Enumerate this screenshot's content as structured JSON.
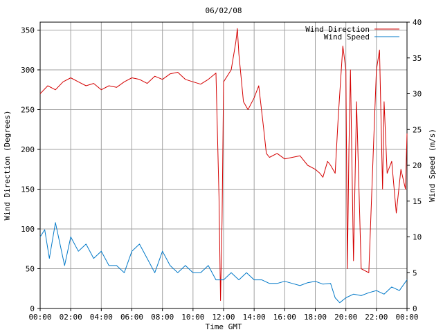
{
  "chart_data": {
    "type": "line",
    "title": "06/02/08",
    "xlabel": "Time GMT",
    "ylabel_left": "Wind Direction (Degrees)",
    "ylabel_right": "Wind Speed (m/s)",
    "x_ticks": [
      "00:00",
      "02:00",
      "04:00",
      "06:00",
      "08:00",
      "10:00",
      "12:00",
      "14:00",
      "16:00",
      "18:00",
      "20:00",
      "22:00",
      "00:00"
    ],
    "xlim_hours": [
      0,
      24
    ],
    "ylim_left": [
      0,
      360
    ],
    "yticks_left": [
      0,
      50,
      100,
      150,
      200,
      250,
      300,
      350
    ],
    "ylim_right": [
      0,
      40
    ],
    "yticks_right": [
      0,
      5,
      10,
      15,
      20,
      25,
      30,
      35,
      40
    ],
    "grid": true,
    "legend_position": "top-right",
    "series": [
      {
        "name": "Wind Direction",
        "axis": "left",
        "color": "#d40000",
        "x": [
          0,
          0.5,
          1,
          1.5,
          2,
          2.5,
          3,
          3.5,
          4,
          4.5,
          5,
          5.5,
          6,
          6.5,
          7,
          7.5,
          8,
          8.5,
          9,
          9.5,
          10,
          10.5,
          11,
          11.5,
          11.7,
          11.8,
          11.9,
          12,
          12.5,
          12.8,
          12.9,
          13,
          13.3,
          13.6,
          14,
          14.3,
          14.6,
          14.8,
          15,
          15.5,
          16,
          16.5,
          17,
          17.5,
          18,
          18.3,
          18.5,
          18.8,
          19,
          19.3,
          19.5,
          19.8,
          20,
          20.1,
          20.2,
          20.3,
          20.5,
          20.7,
          21,
          21.5,
          21.8,
          22,
          22.2,
          22.4,
          22.5,
          22.7,
          23,
          23.3,
          23.6,
          23.9,
          24
        ],
        "y": [
          270,
          280,
          275,
          285,
          290,
          285,
          280,
          283,
          275,
          280,
          278,
          285,
          290,
          288,
          283,
          292,
          288,
          295,
          297,
          288,
          285,
          282,
          288,
          296,
          140,
          10,
          110,
          285,
          300,
          335,
          352,
          320,
          260,
          250,
          265,
          280,
          230,
          195,
          190,
          195,
          188,
          190,
          192,
          180,
          175,
          170,
          165,
          185,
          180,
          170,
          240,
          330,
          300,
          50,
          200,
          300,
          60,
          260,
          50,
          45,
          200,
          300,
          325,
          150,
          260,
          170,
          185,
          120,
          175,
          150,
          220
        ]
      },
      {
        "name": "Wind Speed",
        "axis": "right",
        "color": "#0078c8",
        "x": [
          0,
          0.3,
          0.6,
          1,
          1.3,
          1.6,
          2,
          2.5,
          3,
          3.5,
          4,
          4.5,
          5,
          5.5,
          6,
          6.5,
          7,
          7.5,
          8,
          8.5,
          9,
          9.5,
          10,
          10.5,
          11,
          11.5,
          12,
          12.5,
          13,
          13.5,
          14,
          14.5,
          15,
          15.5,
          16,
          16.5,
          17,
          17.5,
          18,
          18.5,
          19,
          19.3,
          19.6,
          20,
          20.5,
          21,
          21.5,
          22,
          22.5,
          23,
          23.5,
          24
        ],
        "y": [
          10,
          11,
          7,
          12,
          9,
          6,
          10,
          8,
          9,
          7,
          8,
          6,
          6,
          5,
          8,
          9,
          7,
          5,
          8,
          6,
          5,
          6,
          5,
          5,
          6,
          4,
          4,
          5,
          4,
          5,
          4,
          4,
          3.5,
          3.5,
          3.8,
          3.5,
          3.2,
          3.6,
          3.8,
          3.4,
          3.5,
          1.5,
          0.8,
          1.5,
          2,
          1.8,
          2.2,
          2.5,
          2,
          3,
          2.5,
          4
        ]
      }
    ]
  }
}
